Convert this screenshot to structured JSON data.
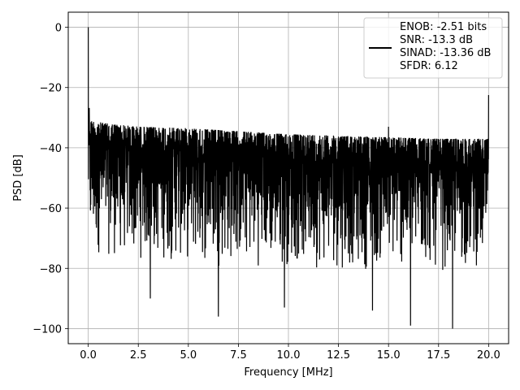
{
  "chart_data": {
    "type": "line",
    "title": "",
    "xlabel": "Frequency [MHz]",
    "ylabel": "PSD [dB]",
    "xlim": [
      -1.0,
      21.0
    ],
    "ylim": [
      -105,
      5
    ],
    "xticks": [
      0.0,
      2.5,
      5.0,
      7.5,
      10.0,
      12.5,
      15.0,
      17.5,
      20.0
    ],
    "xtick_labels": [
      "0.0",
      "2.5",
      "5.0",
      "7.5",
      "10.0",
      "12.5",
      "15.0",
      "17.5",
      "20.0"
    ],
    "yticks": [
      0,
      -20,
      -40,
      -60,
      -80,
      -100
    ],
    "ytick_labels": [
      "0",
      "−20",
      "−40",
      "−60",
      "−80",
      "−100"
    ],
    "grid": true,
    "legend_position": "top-right",
    "legend": [
      "ENOB: -2.51 bits",
      "SNR: -13.3 dB",
      "SINAD: -13.36 dB",
      "SFDR: 6.12"
    ],
    "series": [
      {
        "color": "#000000",
        "noise_floor_envelope": {
          "x": [
            0.0,
            0.1,
            1.0,
            2.5,
            5.0,
            7.5,
            10.0,
            12.5,
            15.0,
            17.5,
            20.0
          ],
          "upper": [
            -22,
            -31,
            -32,
            -33,
            -33.5,
            -34.5,
            -35.5,
            -36,
            -36.5,
            -37,
            -37
          ],
          "lower": [
            -73,
            -76,
            -77,
            -78,
            -79,
            -80,
            -80,
            -81,
            -81,
            -82,
            -80
          ]
        },
        "peaks": [
          {
            "x": 0.0,
            "y": 0.0
          },
          {
            "x": 15.0,
            "y": -33.0
          },
          {
            "x": 20.0,
            "y": -22.5
          }
        ],
        "dips": [
          {
            "x": 6.5,
            "y": -96
          },
          {
            "x": 16.1,
            "y": -99
          },
          {
            "x": 18.2,
            "y": -100
          },
          {
            "x": 14.2,
            "y": -94
          },
          {
            "x": 3.1,
            "y": -90
          },
          {
            "x": 9.8,
            "y": -93
          }
        ]
      }
    ]
  }
}
